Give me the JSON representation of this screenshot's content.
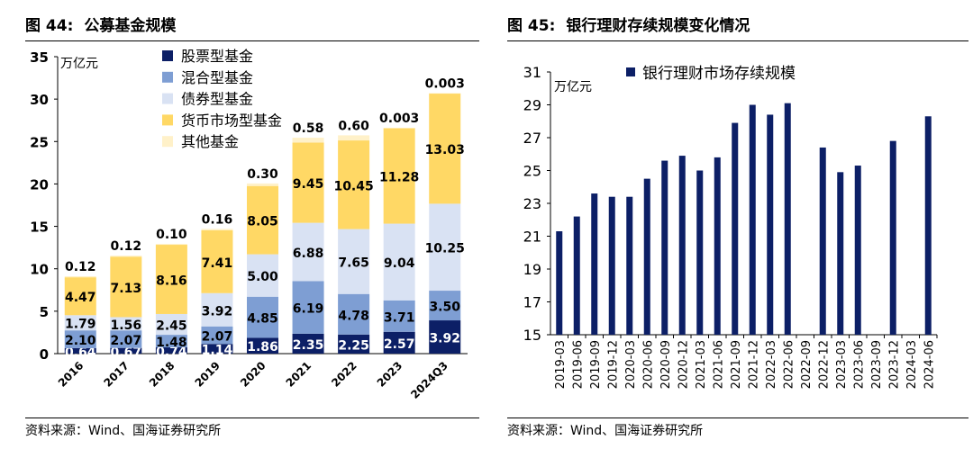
{
  "figures": [
    {
      "number": "图 44:",
      "title": "公募基金规模",
      "source": "资料来源：Wind、国海证券研究所"
    },
    {
      "number": "图 45:",
      "title": "银行理财存续规模变化情况",
      "source": "资料来源：Wind、国海证券研究所"
    }
  ],
  "chart_data": [
    {
      "type": "bar",
      "stacked": true,
      "unit_label": "万亿元",
      "categories": [
        "2016",
        "2017",
        "2018",
        "2019",
        "2020",
        "2021",
        "2022",
        "2023",
        "2024Q3"
      ],
      "ylim": [
        0,
        35
      ],
      "yticks": [
        0,
        5,
        10,
        15,
        20,
        25,
        30,
        35
      ],
      "legend_position": "top-left",
      "series": [
        {
          "name": "股票型基金",
          "color": "#0c1f66",
          "values": [
            0.64,
            0.67,
            0.74,
            1.14,
            1.86,
            2.35,
            2.25,
            2.57,
            3.92
          ],
          "labels": [
            "0.64",
            "0.67",
            "0.74",
            "1.14",
            "1.86",
            "2.35",
            "2.25",
            "2.57",
            "3.92"
          ]
        },
        {
          "name": "混合型基金",
          "color": "#7e9ed3",
          "values": [
            2.1,
            2.07,
            1.48,
            2.07,
            4.85,
            6.19,
            4.78,
            3.71,
            3.5
          ],
          "labels": [
            "2.10",
            "2.07",
            "1.48",
            "2.07",
            "4.85",
            "6.19",
            "4.78",
            "3.71",
            "3.50"
          ]
        },
        {
          "name": "债券型基金",
          "color": "#d9e2f3",
          "values": [
            1.79,
            1.56,
            2.45,
            3.92,
            5.0,
            6.88,
            7.65,
            9.04,
            10.25
          ],
          "labels": [
            "1.79",
            "1.56",
            "2.45",
            "3.92",
            "5.00",
            "6.88",
            "7.65",
            "9.04",
            "10.25"
          ]
        },
        {
          "name": "货币市场型基金",
          "color": "#ffd865",
          "values": [
            4.47,
            7.13,
            8.16,
            7.41,
            8.05,
            9.45,
            10.45,
            11.28,
            13.03
          ],
          "labels": [
            "4.47",
            "7.13",
            "8.16",
            "7.41",
            "8.05",
            "9.45",
            "10.45",
            "11.28",
            "13.03"
          ]
        },
        {
          "name": "其他基金",
          "color": "#fff1c9",
          "values": [
            0.12,
            0.12,
            0.1,
            0.16,
            0.3,
            0.58,
            0.6,
            0.003,
            0.003
          ],
          "labels": [
            "0.12",
            "0.12",
            "0.10",
            "0.16",
            "0.30",
            "0.58",
            "0.60",
            "0.003",
            "0.003"
          ]
        }
      ]
    },
    {
      "type": "bar",
      "unit_label": "万亿元",
      "categories": [
        "2019-03",
        "2019-06",
        "2019-09",
        "2019-12",
        "2020-03",
        "2020-06",
        "2020-09",
        "2020-12",
        "2021-03",
        "2021-06",
        "2021-09",
        "2021-12",
        "2022-03",
        "2022-06",
        "2022-09",
        "2022-12",
        "2023-03",
        "2023-06",
        "2023-09",
        "2023-12",
        "2024-03",
        "2024-06"
      ],
      "ylim": [
        15,
        31
      ],
      "yticks": [
        15,
        17,
        19,
        21,
        23,
        25,
        27,
        29,
        31
      ],
      "legend_position": "top",
      "series": [
        {
          "name": "银行理财市场存续规模",
          "color": "#0c1f66",
          "values": [
            21.3,
            22.2,
            23.6,
            23.4,
            23.4,
            24.5,
            25.6,
            25.9,
            25.0,
            25.8,
            27.9,
            29.0,
            28.4,
            29.1,
            null,
            26.4,
            24.9,
            25.3,
            null,
            26.8,
            null,
            28.3
          ]
        }
      ]
    }
  ]
}
